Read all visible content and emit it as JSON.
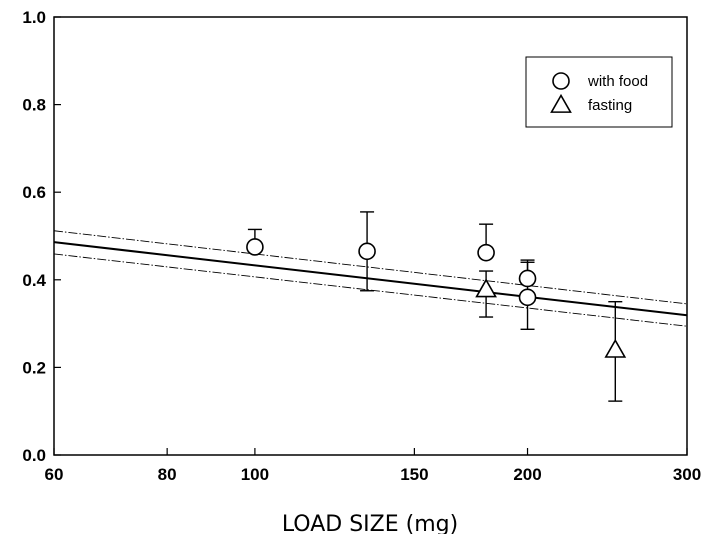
{
  "chart_data": {
    "type": "scatter",
    "title": "",
    "xlabel": "LOAD SIZE (mg)",
    "ylabel": "",
    "x_scale": "log",
    "xlim": [
      60,
      300
    ],
    "ylim": [
      0.0,
      1.0
    ],
    "x_ticks": [
      {
        "value": 60,
        "label": "60"
      },
      {
        "value": 80,
        "label": "80"
      },
      {
        "value": 100,
        "label": "100"
      },
      {
        "value": 150,
        "label": "150"
      },
      {
        "value": 200,
        "label": "200"
      },
      {
        "value": 300,
        "label": "300"
      }
    ],
    "y_ticks": [
      {
        "value": 0.0,
        "label": "0.0"
      },
      {
        "value": 0.2,
        "label": "0.2"
      },
      {
        "value": 0.4,
        "label": "0.4"
      },
      {
        "value": 0.6,
        "label": "0.6"
      },
      {
        "value": 0.8,
        "label": "0.8"
      },
      {
        "value": 1.0,
        "label": "1.0"
      }
    ],
    "grid": false,
    "legend_position": "top-right",
    "series": [
      {
        "name": "with food",
        "marker": "circle",
        "points": [
          {
            "x": 100,
            "y": 0.475,
            "err_upper": 0.515
          },
          {
            "x": 133,
            "y": 0.465,
            "err_upper": 0.555,
            "err_lower": 0.375
          },
          {
            "x": 180,
            "y": 0.462,
            "err_upper": 0.527
          },
          {
            "x": 200,
            "y": 0.403,
            "err_upper": 0.44
          },
          {
            "x": 200,
            "y": 0.36,
            "err_upper": 0.445,
            "err_lower": 0.287
          }
        ]
      },
      {
        "name": "fasting",
        "marker": "triangle",
        "points": [
          {
            "x": 180,
            "y": 0.378,
            "err_upper": 0.42,
            "err_lower": 0.315
          },
          {
            "x": 250,
            "y": 0.24,
            "err_upper": 0.35,
            "err_lower": 0.123
          }
        ]
      }
    ],
    "fit_line": {
      "x": [
        60,
        300
      ],
      "y": [
        0.486,
        0.319
      ]
    },
    "confidence_band": {
      "upper": {
        "x": [
          60,
          300
        ],
        "y": [
          0.512,
          0.345
        ]
      },
      "lower": {
        "x": [
          60,
          300
        ],
        "y": [
          0.459,
          0.294
        ]
      }
    }
  }
}
